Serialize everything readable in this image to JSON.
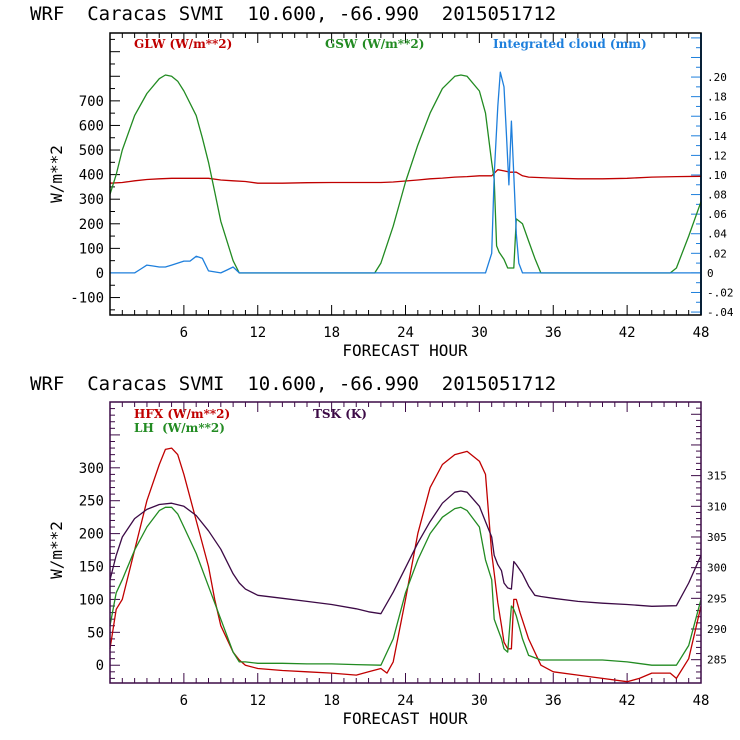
{
  "chart_data": [
    {
      "type": "line",
      "title": "WRF  Caracas SVMI  10.600, -66.990  2015051712",
      "xlabel": "FORECAST HOUR",
      "ylabel": "W/m**2",
      "xlim": [
        0,
        48
      ],
      "ylim": [
        -171,
        976
      ],
      "y2lim": [
        -0.043,
        0.245
      ],
      "x_ticks": [
        6,
        12,
        18,
        24,
        30,
        36,
        42,
        48
      ],
      "x_tick_labels": [
        "6",
        "12",
        "18",
        "24",
        "30",
        "36",
        "42",
        "48"
      ],
      "y_ticks": [
        -100,
        0,
        100,
        200,
        300,
        400,
        500,
        600,
        700
      ],
      "y_tick_labels": [
        "-100",
        "0",
        "100",
        "200",
        "300",
        "400",
        "500",
        "600",
        "700"
      ],
      "y2_ticks": [
        -0.04,
        -0.02,
        0,
        0.02,
        0.04,
        0.06,
        0.08,
        0.1,
        0.12,
        0.14,
        0.16,
        0.18,
        0.2
      ],
      "y2_tick_labels": [
        "-.04",
        "-.02",
        "0",
        ".02",
        ".04",
        ".06",
        ".08",
        ".10",
        ".12",
        ".14",
        ".16",
        ".18",
        ".20"
      ],
      "frame_color": "#000000",
      "right_axis_color": "#1e7fdc",
      "grid": false,
      "legend_position": "top",
      "series": [
        {
          "name": "GLW (W/m**2)",
          "color": "#c00000",
          "axis": "left",
          "x": [
            0,
            1,
            2,
            3,
            4,
            5,
            6,
            7,
            8,
            9,
            10,
            11,
            12,
            14,
            16,
            18,
            20,
            22,
            23,
            24,
            25,
            26,
            27,
            28,
            29,
            30,
            31,
            31.5,
            32,
            32.5,
            33,
            33.5,
            34,
            35,
            36,
            38,
            40,
            42,
            44,
            46,
            48
          ],
          "y": [
            365,
            368,
            375,
            380,
            383,
            385,
            385,
            385,
            385,
            378,
            375,
            372,
            365,
            365,
            367,
            368,
            368,
            368,
            370,
            374,
            378,
            383,
            386,
            390,
            392,
            395,
            395,
            420,
            415,
            410,
            410,
            395,
            390,
            388,
            386,
            383,
            383,
            385,
            390,
            392,
            393
          ]
        },
        {
          "name": "GSW (W/m**2)",
          "color": "#228b22",
          "axis": "left",
          "x": [
            0,
            0.5,
            1,
            2,
            3,
            4,
            4.5,
            5,
            5.5,
            6,
            7,
            7.5,
            8,
            8.5,
            9,
            10,
            10.5,
            11,
            21.5,
            22,
            23,
            24,
            25,
            26,
            27,
            28,
            28.5,
            29,
            30,
            30.5,
            31,
            31.2,
            31.4,
            31.6,
            32,
            32.3,
            32.6,
            32.8,
            33,
            33.5,
            34,
            34.5,
            35,
            45.5,
            46,
            47,
            48
          ],
          "y": [
            320,
            400,
            500,
            640,
            730,
            790,
            805,
            800,
            780,
            740,
            640,
            550,
            450,
            330,
            210,
            50,
            0,
            0,
            0,
            40,
            190,
            370,
            520,
            650,
            750,
            800,
            805,
            800,
            740,
            650,
            450,
            380,
            110,
            85,
            55,
            20,
            20,
            20,
            220,
            200,
            130,
            60,
            0,
            0,
            20,
            150,
            290
          ]
        },
        {
          "name": "Integrated cloud (mm)",
          "color": "#1e7fdc",
          "axis": "right",
          "x": [
            0,
            2,
            2.5,
            3,
            3.5,
            4,
            4.5,
            5,
            6,
            6.5,
            7,
            7.5,
            8,
            9,
            9.5,
            10,
            10.5,
            11,
            30.5,
            31,
            31.2,
            31.5,
            31.7,
            32,
            32.2,
            32.4,
            32.6,
            32.8,
            33,
            33.2,
            33.5,
            48
          ],
          "y": [
            0,
            0,
            0.004,
            0.008,
            0.007,
            0.006,
            0.006,
            0.008,
            0.012,
            0.012,
            0.017,
            0.015,
            0.002,
            0,
            0.003,
            0.006,
            0,
            0,
            0,
            0.02,
            0.1,
            0.17,
            0.205,
            0.19,
            0.14,
            0.09,
            0.155,
            0.1,
            0.04,
            0.01,
            0,
            0
          ]
        }
      ]
    },
    {
      "type": "line",
      "title": "WRF  Caracas SVMI  10.600, -66.990  2015051712",
      "xlabel": "FORECAST HOUR",
      "ylabel": "W/m**2",
      "xlim": [
        0,
        48
      ],
      "ylim": [
        -27,
        400
      ],
      "y2lim": [
        281.2,
        327
      ],
      "x_ticks": [
        6,
        12,
        18,
        24,
        30,
        36,
        42,
        48
      ],
      "x_tick_labels": [
        "6",
        "12",
        "18",
        "24",
        "30",
        "36",
        "42",
        "48"
      ],
      "y_ticks": [
        0,
        50,
        100,
        150,
        200,
        250,
        300
      ],
      "y_tick_labels": [
        "0",
        "50",
        "100",
        "150",
        "200",
        "250",
        "300"
      ],
      "y2_ticks": [
        285,
        290,
        295,
        300,
        305,
        310,
        315
      ],
      "y2_tick_labels": [
        "285",
        "290",
        "295",
        "300",
        "305",
        "310",
        "315"
      ],
      "frame_color": "#3c0a46",
      "grid": false,
      "legend_position": "top-left",
      "series": [
        {
          "name": "HFX (W/m**2)",
          "color": "#c00000",
          "axis": "left",
          "x": [
            0,
            0.5,
            1,
            2,
            3,
            4,
            4.5,
            5,
            5.5,
            6,
            7,
            8,
            8.5,
            9,
            10,
            10.5,
            11,
            12,
            14,
            16,
            18,
            20,
            21,
            22,
            22.5,
            23,
            24,
            25,
            26,
            27,
            28,
            29,
            30,
            30.5,
            31,
            31.2,
            31.5,
            31.8,
            32,
            32.3,
            32.6,
            32.8,
            33,
            33.3,
            34,
            35,
            36,
            38,
            40,
            42,
            43,
            44,
            45,
            45.5,
            46,
            47,
            48
          ],
          "y": [
            25,
            85,
            100,
            175,
            250,
            305,
            328,
            330,
            320,
            290,
            220,
            150,
            100,
            60,
            20,
            8,
            0,
            -5,
            -8,
            -10,
            -12,
            -15,
            -10,
            -5,
            -12,
            5,
            100,
            200,
            270,
            305,
            320,
            325,
            310,
            290,
            170,
            140,
            95,
            60,
            35,
            25,
            25,
            100,
            100,
            80,
            40,
            0,
            -10,
            -15,
            -20,
            -25,
            -20,
            -12,
            -12,
            -12,
            -20,
            10,
            90
          ]
        },
        {
          "name": "LH  (W/m**2)",
          "color": "#228b22",
          "axis": "left",
          "x": [
            0,
            0.5,
            1,
            2,
            3,
            4,
            4.5,
            5,
            5.5,
            6,
            7,
            8,
            9,
            10,
            10.5,
            11,
            12,
            14,
            16,
            18,
            20,
            22,
            23,
            24,
            25,
            26,
            27,
            28,
            28.5,
            29,
            30,
            30.5,
            31,
            31.2,
            31.5,
            31.8,
            32,
            32.3,
            32.6,
            32.8,
            33,
            33.5,
            34,
            35,
            36,
            38,
            40,
            42,
            44,
            46,
            47,
            48
          ],
          "y": [
            60,
            110,
            130,
            175,
            210,
            235,
            240,
            240,
            230,
            210,
            170,
            120,
            70,
            20,
            5,
            5,
            3,
            3,
            2,
            2,
            1,
            0,
            40,
            110,
            160,
            200,
            225,
            238,
            240,
            235,
            210,
            160,
            130,
            70,
            55,
            40,
            25,
            20,
            90,
            85,
            75,
            40,
            15,
            8,
            8,
            8,
            8,
            5,
            0,
            0,
            30,
            100
          ]
        },
        {
          "name": "TSK (K)",
          "color": "#3c0a46",
          "axis": "right",
          "x": [
            0,
            0.5,
            1,
            2,
            3,
            4,
            5,
            6,
            7,
            8,
            9,
            10,
            10.5,
            11,
            12,
            14,
            16,
            18,
            20,
            21,
            22,
            23,
            24,
            25,
            26,
            27,
            28,
            28.5,
            29,
            30,
            30.5,
            31,
            31.2,
            31.5,
            31.8,
            32,
            32.3,
            32.6,
            32.8,
            33,
            33.5,
            34,
            34.5,
            35,
            36,
            38,
            40,
            42,
            44,
            46,
            47,
            48
          ],
          "y": [
            298,
            302,
            305,
            308,
            309.5,
            310.3,
            310.5,
            310,
            308.5,
            306,
            303,
            299,
            297.5,
            296.5,
            295.5,
            295,
            294.5,
            294,
            293.3,
            292.8,
            292.5,
            296,
            300,
            304,
            307.5,
            310.5,
            312.3,
            312.5,
            312.3,
            310,
            307.5,
            305,
            302,
            300.5,
            299.5,
            297.5,
            296.7,
            296.5,
            301,
            300.5,
            299,
            297,
            295.5,
            295.3,
            295,
            294.5,
            294.2,
            294,
            293.7,
            293.8,
            297.5,
            302
          ]
        }
      ]
    }
  ]
}
